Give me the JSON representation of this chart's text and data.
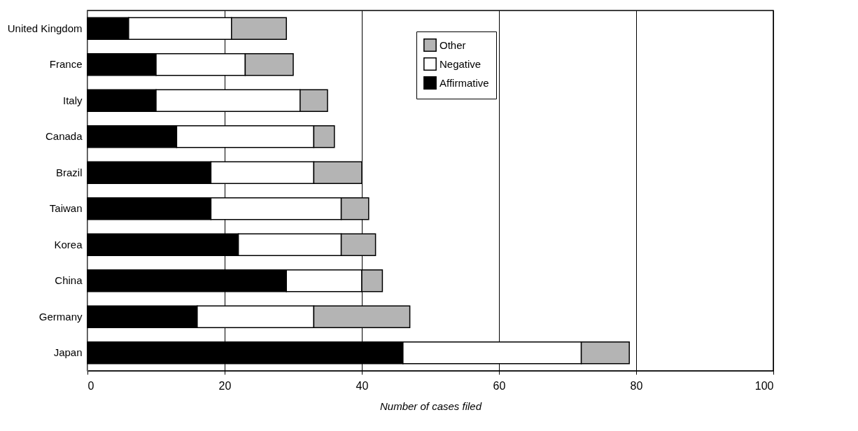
{
  "chart_data": {
    "type": "bar",
    "orientation": "horizontal",
    "stacked": true,
    "xlabel": "Number of cases filed",
    "categories": [
      "United Kingdom",
      "France",
      "Italy",
      "Canada",
      "Brazil",
      "Taiwan",
      "Korea",
      "China",
      "Germany",
      "Japan"
    ],
    "series": [
      {
        "name": "Affirmative",
        "color": "#000000",
        "values": [
          6,
          10,
          10,
          13,
          18,
          18,
          22,
          29,
          16,
          46
        ]
      },
      {
        "name": "Negative",
        "color": "#ffffff",
        "values": [
          15,
          13,
          21,
          20,
          15,
          19,
          15,
          11,
          17,
          26
        ]
      },
      {
        "name": "Other",
        "color": "#b4b4b4",
        "values": [
          8,
          7,
          4,
          3,
          7,
          4,
          5,
          3,
          14,
          7
        ]
      }
    ],
    "xlim": [
      0,
      100
    ],
    "xticks": [
      0,
      20,
      40,
      60,
      80,
      100
    ],
    "grid": "x",
    "legend": "top right"
  }
}
